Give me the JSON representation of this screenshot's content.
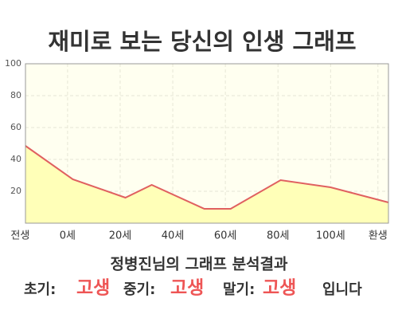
{
  "chart_data": {
    "type": "area",
    "title": "재미로 보는 당신의 인생 그래프",
    "x": [
      -16,
      2,
      22,
      32,
      52,
      62,
      81,
      100,
      122
    ],
    "values": [
      48.5,
      27.5,
      16,
      24,
      9,
      9,
      27,
      22.5,
      13
    ],
    "color": "#e06060",
    "fill": "#ffffb8",
    "xlim": [
      -16,
      122
    ],
    "xticks": [
      {
        "value": -18,
        "label": "전생"
      },
      {
        "value": 0,
        "label": "0세"
      },
      {
        "value": 20,
        "label": "20세"
      },
      {
        "value": 40,
        "label": "40세"
      },
      {
        "value": 60,
        "label": "60세"
      },
      {
        "value": 80,
        "label": "80세"
      },
      {
        "value": 100,
        "label": "100세"
      },
      {
        "value": 118,
        "label": "환생"
      }
    ],
    "ylim": [
      0,
      100
    ],
    "yticks": [
      20,
      40,
      60,
      80,
      100
    ],
    "grid": true
  },
  "analysis": {
    "heading": "정병진님의 그래프 분석결과",
    "items": [
      {
        "label": "초기:",
        "result": "고생"
      },
      {
        "label": "중기:",
        "result": "고생"
      },
      {
        "label": "말기:",
        "result": "고생"
      }
    ],
    "ending": "입니다"
  }
}
